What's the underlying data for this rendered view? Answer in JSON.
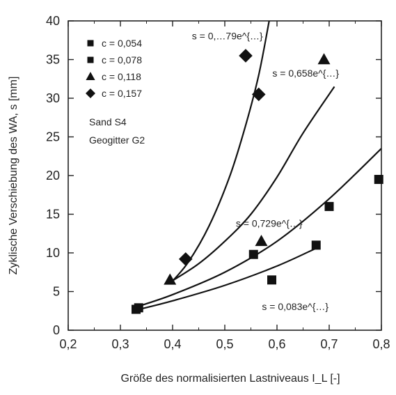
{
  "chart_data": {
    "type": "scatter",
    "title": "",
    "xlabel": "Größe des normalisierten Lastniveaus I_L [-]",
    "ylabel": "Zyklische Verschiebung des WA, s [mm]",
    "xlim": [
      0.2,
      0.8
    ],
    "ylim": [
      0,
      40
    ],
    "xticks": [
      0.2,
      0.3,
      0.4,
      0.5,
      0.6,
      0.7,
      0.8
    ],
    "xtick_labels": [
      "0,2",
      "0,3",
      "0,4",
      "0,5",
      "0,6",
      "0,7",
      "0,8"
    ],
    "yticks": [
      0,
      5,
      10,
      15,
      20,
      25,
      30,
      35,
      40
    ],
    "ytick_labels": [
      "0",
      "5",
      "10",
      "15",
      "20",
      "25",
      "30",
      "35",
      "40"
    ],
    "grid": false,
    "legend_position": "top-left",
    "annotation_lines": [
      "Sand S4",
      "Geogitter G2"
    ],
    "series": [
      {
        "name": "c = 0,054",
        "marker": "square",
        "points": [
          [
            0.33,
            2.7
          ],
          [
            0.59,
            6.5
          ],
          [
            0.675,
            11.0
          ],
          [
            0.795,
            19.5
          ]
        ],
        "fit_label": "s = 0,083e^{…}",
        "fit_curve": [
          [
            0.33,
            2.6
          ],
          [
            0.4,
            3.8
          ],
          [
            0.5,
            5.8
          ],
          [
            0.6,
            8.3
          ],
          [
            0.675,
            10.6
          ]
        ]
      },
      {
        "name": "c = 0,078",
        "marker": "square",
        "points": [
          [
            0.335,
            2.9
          ],
          [
            0.555,
            9.8
          ],
          [
            0.7,
            16.0
          ]
        ],
        "fit_label": "s = 0,729e^{…}",
        "fit_curve": [
          [
            0.33,
            3.0
          ],
          [
            0.4,
            4.6
          ],
          [
            0.5,
            7.5
          ],
          [
            0.6,
            11.5
          ],
          [
            0.7,
            17.0
          ],
          [
            0.8,
            23.5
          ]
        ]
      },
      {
        "name": "c = 0,118",
        "marker": "triangle",
        "points": [
          [
            0.395,
            6.5
          ],
          [
            0.57,
            11.5
          ],
          [
            0.69,
            35.0
          ]
        ],
        "fit_label": "s = 0,658e^{…}",
        "fit_curve": [
          [
            0.395,
            6.2
          ],
          [
            0.45,
            8.6
          ],
          [
            0.5,
            11.5
          ],
          [
            0.55,
            15.0
          ],
          [
            0.6,
            19.8
          ],
          [
            0.65,
            25.5
          ],
          [
            0.71,
            31.5
          ]
        ]
      },
      {
        "name": "c = 0,157",
        "marker": "diamond",
        "points": [
          [
            0.425,
            9.2
          ],
          [
            0.54,
            35.5
          ],
          [
            0.565,
            30.5
          ]
        ],
        "fit_label": "s = 0,…79e^{…}",
        "fit_curve": [
          [
            0.395,
            6.0
          ],
          [
            0.43,
            8.8
          ],
          [
            0.47,
            13.5
          ],
          [
            0.51,
            20.0
          ],
          [
            0.54,
            26.5
          ],
          [
            0.565,
            33.0
          ],
          [
            0.585,
            40.0
          ]
        ]
      }
    ]
  },
  "axis": {
    "ylabel": "Zyklische Verschiebung des WA, s [mm]",
    "xlabel": "Größe des normalisierten Lastniveaus I_L [-]"
  },
  "legend": [
    {
      "label": "c = 0,054",
      "marker": "square"
    },
    {
      "label": "c = 0,078",
      "marker": "square"
    },
    {
      "label": "c = 0,118",
      "marker": "triangle"
    },
    {
      "label": "c = 0,157",
      "marker": "diamond"
    }
  ],
  "annotation": {
    "line1": "Sand S4",
    "line2": "Geogitter G2"
  }
}
